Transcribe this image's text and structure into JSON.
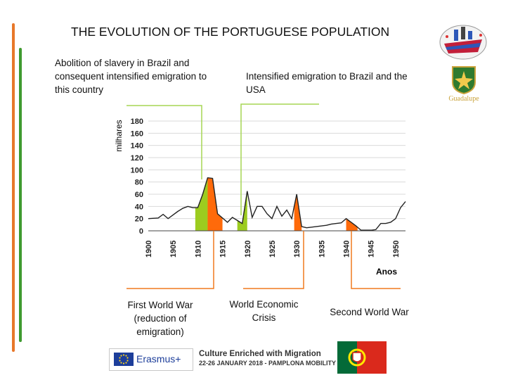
{
  "title": "THE EVOLUTION OF THE PORTUGUESE POPULATION",
  "annotations": {
    "abolition": "Abolition of slavery in Brazil and consequent intensified emigration to this country",
    "intensified": "Intensified emigration to Brazil and the USA",
    "ww1": "First World War (reduction of emigration)",
    "crisis": "World Economic Crisis",
    "ww2": "Second World War"
  },
  "footer": {
    "erasmus": "Erasmus+",
    "culture": "Culture Enriched with Migration",
    "mobility": "22-26 JANUARY 2018 - PAMPLONA MOBILITY"
  },
  "logos": {
    "guadalupe": "Guadalupe"
  },
  "colors": {
    "green_fill": "#9ccc1f",
    "orange_fill": "#ff6a0a",
    "line": "#222222",
    "callout_green": "#a6d654",
    "callout_orange": "#f07a1e"
  },
  "chart_data": {
    "type": "area",
    "xlabel": "Anos",
    "ylabel": "milhares",
    "xlim": [
      1900,
      1952
    ],
    "ylim": [
      0,
      180
    ],
    "x_ticks": [
      "1900",
      "1905",
      "1910",
      "1915",
      "1920",
      "1925",
      "1930",
      "1935",
      "1940",
      "1945",
      "1950"
    ],
    "y_ticks": [
      "0",
      "20",
      "40",
      "60",
      "80",
      "100",
      "120",
      "140",
      "160",
      "180"
    ],
    "grid": true,
    "series": [
      {
        "x": [
          1900,
          1902,
          1903,
          1904,
          1906,
          1907,
          1908,
          1909,
          1910,
          1911,
          1912,
          1913,
          1914,
          1915,
          1916,
          1917,
          1918,
          1919,
          1920,
          1921,
          1922,
          1923,
          1924,
          1925,
          1926,
          1927,
          1928,
          1929,
          1930,
          1931,
          1932,
          1933,
          1934,
          1935,
          1936,
          1937,
          1938,
          1939,
          1940,
          1941,
          1942,
          1943,
          1944,
          1945,
          1946,
          1947,
          1948,
          1949,
          1950,
          1951,
          1952
        ],
        "y": [
          20,
          21,
          27,
          20,
          32,
          37,
          40,
          38,
          38,
          60,
          87,
          86,
          28,
          21,
          14,
          22,
          17,
          12,
          65,
          22,
          40,
          40,
          28,
          20,
          40,
          24,
          34,
          20,
          60,
          7,
          5,
          6,
          7,
          8,
          9,
          11,
          12,
          13,
          20,
          14,
          8,
          1,
          1,
          1,
          2,
          12,
          12,
          14,
          20,
          38,
          48
        ]
      }
    ],
    "highlights": [
      {
        "label": "increase 1910-1912",
        "color": "green",
        "x_range": [
          1909.5,
          1912
        ]
      },
      {
        "label": "decrease 1912-1915",
        "color": "orange",
        "x_range": [
          1912,
          1915
        ]
      },
      {
        "label": "increase 1918-1920",
        "color": "green",
        "x_range": [
          1918,
          1920
        ]
      },
      {
        "label": "decrease 1929-1931",
        "color": "orange",
        "x_range": [
          1929.5,
          1931
        ]
      },
      {
        "label": "decrease 1940-1942",
        "color": "orange",
        "x_range": [
          1940,
          1942.3
        ]
      }
    ]
  }
}
